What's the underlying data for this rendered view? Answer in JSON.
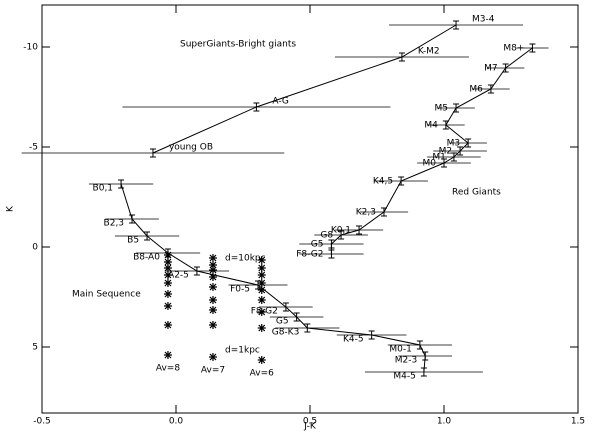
{
  "chart_data": {
    "type": "line",
    "xlabel": "J-K",
    "ylabel": "K",
    "xlim": [
      -0.5,
      1.5
    ],
    "ylim": [
      8.3,
      -12.1
    ],
    "xticks": [
      -0.5,
      {
        "value": 0,
        "label": "0.0"
      },
      0.5,
      {
        "value": 1,
        "label": "1.0"
      },
      1.5
    ],
    "yticks": [
      -10,
      -5,
      0,
      5
    ],
    "annotations": [
      "SuperGiants-Bright giants",
      "Red Giants",
      "Main Sequence",
      "d=10kpc",
      "d=1kpc"
    ],
    "series": [
      {
        "labels": [
          "young OB",
          "A-G",
          "K-M2",
          "M3-4"
        ],
        "x": [
          -0.086,
          0.3,
          0.843,
          1.045
        ],
        "values": [
          -4.7,
          -7.0,
          -9.5,
          -11.1
        ],
        "xerr": [
          0.49,
          0.5,
          0.25,
          0.25
        ]
      },
      {
        "labels": [
          "M8+",
          "M7",
          "M6",
          "M5",
          "M4",
          "M3",
          "M2",
          "M1",
          "M0",
          "K4,5",
          "K2,3",
          "K0,1",
          "G8",
          "G5",
          "F8-G2"
        ],
        "x": [
          1.33,
          1.23,
          1.175,
          1.045,
          1.007,
          1.09,
          1.06,
          1.037,
          1.0,
          0.84,
          0.776,
          0.683,
          0.616,
          0.58,
          0.58
        ],
        "values": [
          -9.95,
          -8.95,
          -7.9,
          -6.95,
          -6.1,
          -5.2,
          -4.8,
          -4.5,
          -4.2,
          -3.3,
          -1.75,
          -0.85,
          -0.6,
          -0.15,
          0.35
        ],
        "xerr": [
          0.06,
          0.07,
          0.07,
          0.07,
          0.07,
          0.07,
          0.1,
          0.1,
          0.1,
          0.1,
          0.09,
          0.09,
          0.1,
          0.12,
          0.12
        ]
      },
      {
        "labels": [
          "B0,1",
          "B2,3",
          "B5",
          "B8-A0",
          "A2-5",
          "F0-5",
          "F8-G2",
          "G5",
          "G8-K3",
          "K4-5",
          "M0-1",
          "M2-3",
          "M4-5"
        ],
        "x": [
          -0.205,
          -0.164,
          -0.108,
          -0.03,
          0.078,
          0.306,
          0.41,
          0.45,
          0.49,
          0.73,
          0.91,
          0.93,
          0.925
        ],
        "values": [
          -3.15,
          -1.4,
          -0.55,
          0.3,
          1.2,
          1.9,
          3.0,
          3.5,
          4.05,
          4.4,
          4.9,
          5.45,
          6.25
        ],
        "xerr": [
          0.12,
          0.1,
          0.12,
          0.12,
          0.12,
          0.11,
          0.1,
          0.1,
          0.12,
          0.13,
          0.12,
          0.1,
          0.22
        ]
      }
    ],
    "markers": [
      {
        "label": "Av=8",
        "x": [
          -0.03,
          -0.03,
          -0.03,
          -0.03,
          -0.03,
          -0.03,
          -0.03,
          -0.03,
          -0.03
        ],
        "values": [
          0.4,
          0.75,
          1.05,
          1.4,
          1.8,
          2.35,
          2.95,
          3.9,
          5.4
        ]
      },
      {
        "label": "Av=7",
        "x": [
          0.138,
          0.138,
          0.138,
          0.138,
          0.138,
          0.138,
          0.138,
          0.138,
          0.138
        ],
        "values": [
          0.55,
          0.9,
          1.15,
          1.5,
          2.0,
          2.65,
          3.15,
          3.9,
          5.5
        ]
      },
      {
        "label": "Av=6",
        "x": [
          0.32,
          0.32,
          0.32,
          0.32,
          0.32,
          0.32,
          0.32,
          0.32,
          0.32
        ],
        "values": [
          0.65,
          1.05,
          1.4,
          1.8,
          2.15,
          2.65,
          3.25,
          4.05,
          5.65
        ]
      }
    ]
  }
}
